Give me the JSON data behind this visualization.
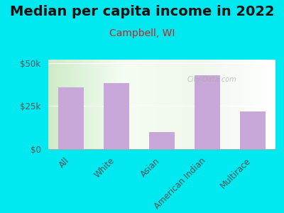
{
  "title": "Median per capita income in 2022",
  "subtitle": "Campbell, WI",
  "categories": [
    "All",
    "White",
    "Asian",
    "American Indian",
    "Multirace"
  ],
  "values": [
    36000,
    38500,
    10000,
    43000,
    22000
  ],
  "bar_color": "#c8a8d8",
  "background_outer": "#00e8f0",
  "ylim": [
    0,
    52000
  ],
  "yticks": [
    0,
    25000,
    50000
  ],
  "title_fontsize": 14,
  "subtitle_fontsize": 10,
  "tick_fontsize": 8.5,
  "watermark": "City-Data.com"
}
